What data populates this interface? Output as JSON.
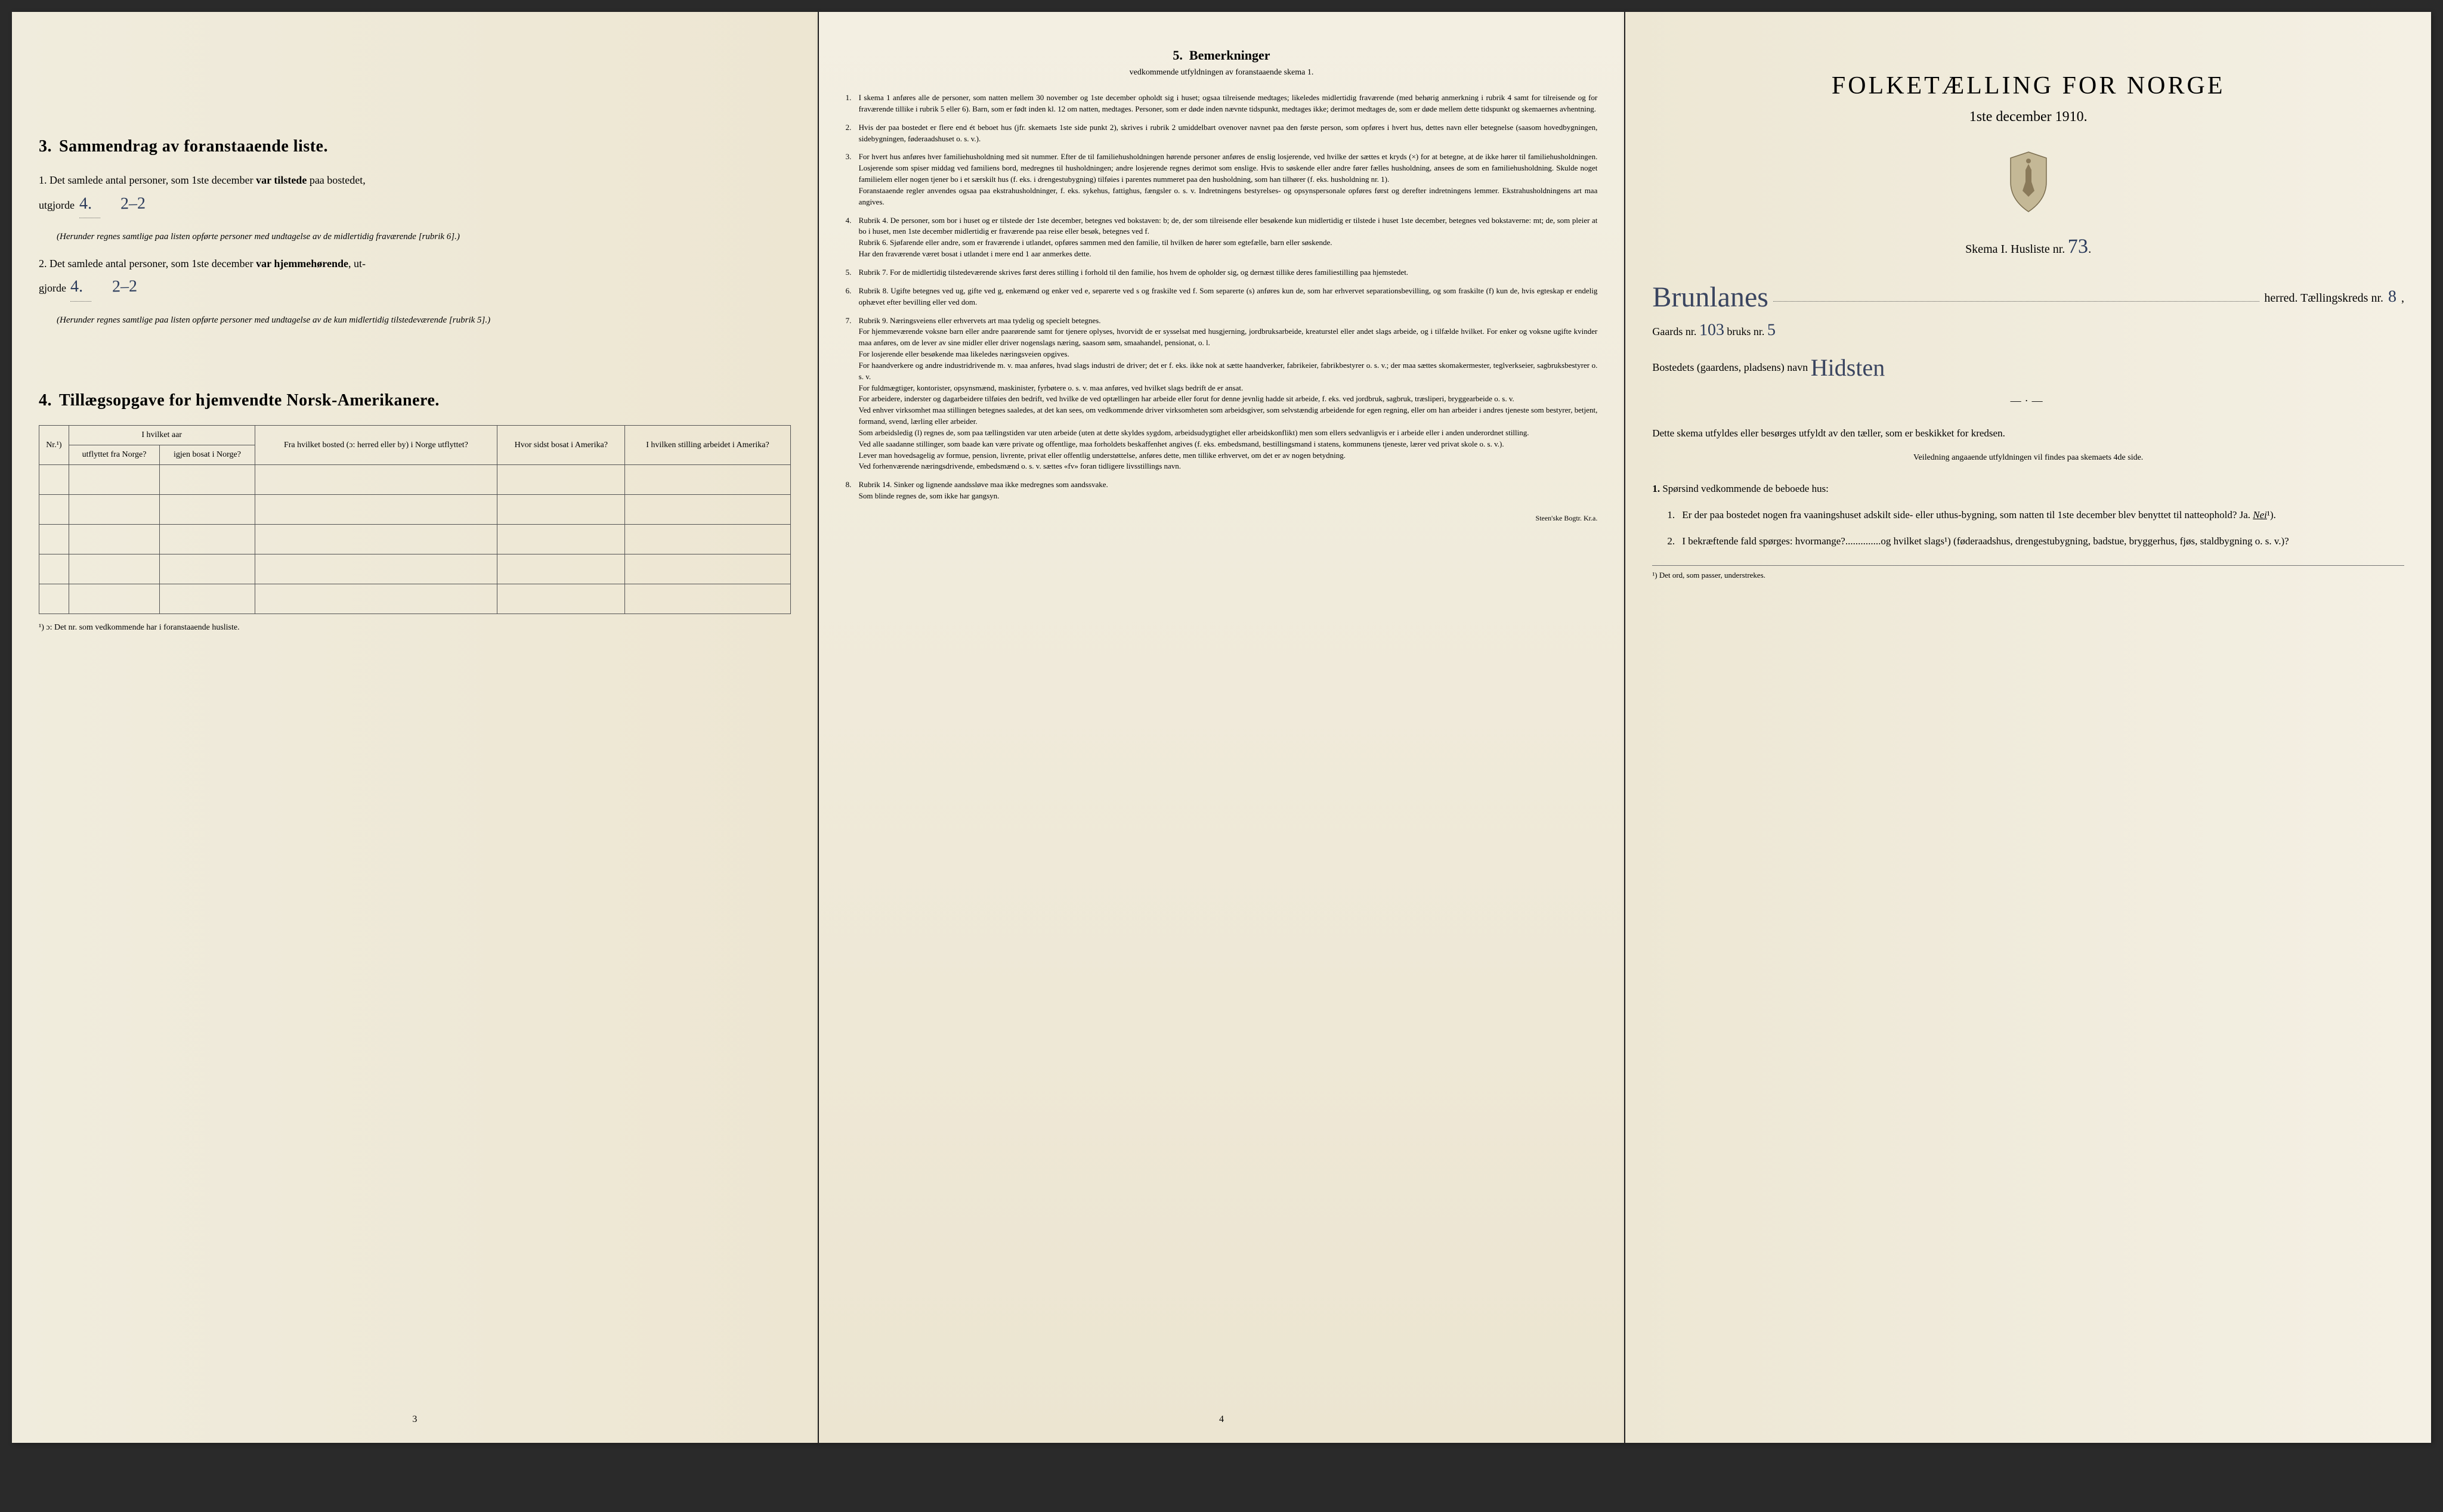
{
  "left": {
    "sec3_title": "Sammendrag av foranstaaende liste.",
    "sec3_num": "3.",
    "q1_lead": "1.",
    "q1_text_a": "Det samlede antal personer, som 1ste december ",
    "q1_bold": "var tilstede",
    "q1_text_b": " paa bostedet,",
    "q1_utgjorde": "utgjorde",
    "q1_val1": "4.",
    "q1_val2": "2–2",
    "q1_note": "(Herunder regnes samtlige paa listen opførte personer med undtagelse av de midlertidig fraværende [rubrik 6].)",
    "q2_lead": "2.",
    "q2_text_a": "Det samlede antal personer, som 1ste december ",
    "q2_bold": "var hjemmehørende",
    "q2_text_b": ", ut-",
    "q2_gjorde": "gjorde",
    "q2_val1": "4.",
    "q2_val2": "2–2",
    "q2_note": "(Herunder regnes samtlige paa listen opførte personer med undtagelse av de kun midlertidig tilstedeværende [rubrik 5].)",
    "sec4_num": "4.",
    "sec4_title": "Tillægsopgave for hjemvendte Norsk-Amerikanere.",
    "th_nr": "Nr.¹)",
    "th_col1_a": "I hvilket aar",
    "th_col1_b": "utflyttet fra Norge?",
    "th_col1_c": "igjen bosat i Norge?",
    "th_col2": "Fra hvilket bosted (ɔ: herred eller by) i Norge utflyttet?",
    "th_col3": "Hvor sidst bosat i Amerika?",
    "th_col4": "I hvilken stilling arbeidet i Amerika?",
    "footnote": "¹) ɔ: Det nr. som vedkommende har i foranstaaende husliste.",
    "page_num": "3"
  },
  "center": {
    "title_num": "5.",
    "title": "Bemerkninger",
    "subtitle": "vedkommende utfyldningen av foranstaaende skema 1.",
    "items": [
      {
        "n": "1.",
        "t": "I skema 1 anføres alle de personer, som natten mellem 30 november og 1ste december opholdt sig i huset; ogsaa tilreisende medtages; likeledes midlertidig fraværende (med behørig anmerkning i rubrik 4 samt for tilreisende og for fraværende tillike i rubrik 5 eller 6). Barn, som er født inden kl. 12 om natten, medtages. Personer, som er døde inden nævnte tidspunkt, medtages ikke; derimot medtages de, som er døde mellem dette tidspunkt og skemaernes avhentning."
      },
      {
        "n": "2.",
        "t": "Hvis der paa bostedet er flere end ét beboet hus (jfr. skemaets 1ste side punkt 2), skrives i rubrik 2 umiddelbart ovenover navnet paa den første person, som opføres i hvert hus, dettes navn eller betegnelse (saasom hovedbygningen, sidebygningen, føderaadshuset o. s. v.)."
      },
      {
        "n": "3.",
        "t": "For hvert hus anføres hver familiehusholdning med sit nummer. Efter de til familiehusholdningen hørende personer anføres de enslig losjerende, ved hvilke der sættes et kryds (×) for at betegne, at de ikke hører til familiehusholdningen. Losjerende som spiser middag ved familiens bord, medregnes til husholdningen; andre losjerende regnes derimot som enslige. Hvis to søskende eller andre fører fælles husholdning, ansees de som en familiehusholdning. Skulde noget familielem eller nogen tjener bo i et særskilt hus (f. eks. i drengestubygning) tilføies i parentes nummeret paa den husholdning, som han tilhører (f. eks. husholdning nr. 1).\n    Foranstaaende regler anvendes ogsaa paa ekstrahusholdninger, f. eks. sykehus, fattighus, fængsler o. s. v. Indretningens bestyrelses- og opsynspersonale opføres først og derefter indretningens lemmer. Ekstrahusholdningens art maa angives."
      },
      {
        "n": "4.",
        "t": "Rubrik 4. De personer, som bor i huset og er tilstede der 1ste december, betegnes ved bokstaven: b; de, der som tilreisende eller besøkende kun midlertidig er tilstede i huset 1ste december, betegnes ved bokstaverne: mt; de, som pleier at bo i huset, men 1ste december midlertidig er fraværende paa reise eller besøk, betegnes ved f.\n    Rubrik 6. Sjøfarende eller andre, som er fraværende i utlandet, opføres sammen med den familie, til hvilken de hører som egtefælle, barn eller søskende.\n    Har den fraværende været bosat i utlandet i mere end 1 aar anmerkes dette."
      },
      {
        "n": "5.",
        "t": "Rubrik 7. For de midlertidig tilstedeværende skrives først deres stilling i forhold til den familie, hos hvem de opholder sig, og dernæst tillike deres familiestilling paa hjemstedet."
      },
      {
        "n": "6.",
        "t": "Rubrik 8. Ugifte betegnes ved ug, gifte ved g, enkemænd og enker ved e, separerte ved s og fraskilte ved f. Som separerte (s) anføres kun de, som har erhvervet separationsbevilling, og som fraskilte (f) kun de, hvis egteskap er endelig ophævet efter bevilling eller ved dom."
      },
      {
        "n": "7.",
        "t": "Rubrik 9. Næringsveiens eller erhvervets art maa tydelig og specielt betegnes.\n    For hjemmeværende voksne barn eller andre paarørende samt for tjenere oplyses, hvorvidt de er sysselsat med husgjerning, jordbruksarbeide, kreaturstel eller andet slags arbeide, og i tilfælde hvilket. For enker og voksne ugifte kvinder maa anføres, om de lever av sine midler eller driver nogenslags næring, saasom søm, smaahandel, pensionat, o. l.\n    For losjerende eller besøkende maa likeledes næringsveien opgives.\n    For haandverkere og andre industridrivende m. v. maa anføres, hvad slags industri de driver; det er f. eks. ikke nok at sætte haandverker, fabrikeier, fabrikbestyrer o. s. v.; der maa sættes skomakermester, teglverkseier, sagbruksbestyrer o. s. v.\n    For fuldmægtiger, kontorister, opsynsmænd, maskinister, fyrbøtere o. s. v. maa anføres, ved hvilket slags bedrift de er ansat.\n    For arbeidere, inderster og dagarbeidere tilføies den bedrift, ved hvilke de ved optællingen har arbeide eller forut for denne jevnlig hadde sit arbeide, f. eks. ved jordbruk, sagbruk, træsliperi, bryggearbeide o. s. v.\n    Ved enhver virksomhet maa stillingen betegnes saaledes, at det kan sees, om vedkommende driver virksomheten som arbeidsgiver, som selvstændig arbeidende for egen regning, eller om han arbeider i andres tjeneste som bestyrer, betjent, formand, svend, lærling eller arbeider.\n    Som arbeidsledig (l) regnes de, som paa tællingstiden var uten arbeide (uten at dette skyldes sygdom, arbeidsudygtighet eller arbeidskonflikt) men som ellers sedvanligvis er i arbeide eller i anden underordnet stilling.\n    Ved alle saadanne stillinger, som baade kan være private og offentlige, maa forholdets beskaffenhet angives (f. eks. embedsmand, bestillingsmand i statens, kommunens tjeneste, lærer ved privat skole o. s. v.).\n    Lever man hovedsagelig av formue, pension, livrente, privat eller offentlig understøttelse, anføres dette, men tillike erhvervet, om det er av nogen betydning.\n    Ved forhenværende næringsdrivende, embedsmænd o. s. v. sættes «fv» foran tidligere livsstillings navn."
      },
      {
        "n": "8.",
        "t": "Rubrik 14. Sinker og lignende aandssløve maa ikke medregnes som aandssvake.\n    Som blinde regnes de, som ikke har gangsyn."
      }
    ],
    "page_num": "4",
    "imprint": "Steen'ske Bogtr.  Kr.a."
  },
  "right": {
    "main_title": "FOLKETÆLLING FOR NORGE",
    "date": "1ste december 1910.",
    "skema": "Skema I.   Husliste nr.",
    "husliste_nr": "73",
    "herred_hw": "Brunlanes",
    "herred_label": "herred.  Tællingskreds nr.",
    "kreds_nr": "8",
    "gaards_label": "Gaards nr.",
    "gaards_nr": "103",
    "bruks_label": "bruks nr.",
    "bruks_nr": "5",
    "bosted_label": "Bostedets (gaardens, pladsens) navn",
    "bosted_hw": "Hidsten",
    "instr1": "Dette skema utfyldes eller besørges utfyldt av den tæller, som er beskikket for kredsen.",
    "instr2": "Veiledning angaaende utfyldningen vil findes paa skemaets 4de side.",
    "q_header_num": "1.",
    "q_header": "Spørsind vedkommende de beboede hus:",
    "q1_num": "1.",
    "q1": "Er der paa bostedet nogen fra vaaningshuset adskilt side- eller uthus-bygning, som natten til 1ste december blev benyttet til natteophold?   Ja.   ",
    "q1_ans": "Nei",
    "q1_sup": "¹).",
    "q2_num": "2.",
    "q2": "I bekræftende fald spørges: hvormange?..............og hvilket slags¹) (føderaadshus, drengestubygning, badstue, bryggerhus, fjøs, staldbygning o. s. v.)?",
    "foot": "¹) Det ord, som passer, understrekes."
  }
}
